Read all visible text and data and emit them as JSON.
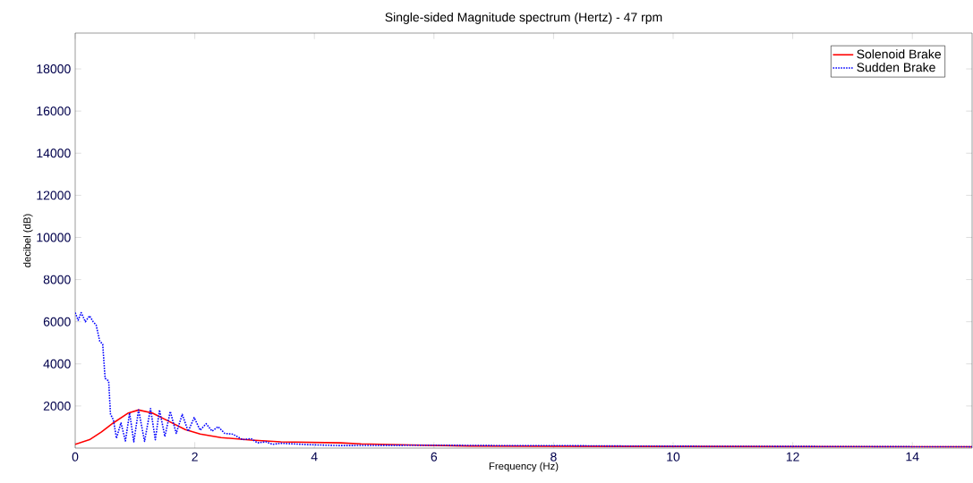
{
  "chart_data": {
    "type": "line",
    "title": "Single-sided Magnitude spectrum (Hertz) - 47 rpm",
    "xlabel": "Frequency (Hz)",
    "ylabel": "decibel (dB)",
    "xlim": [
      0,
      15
    ],
    "ylim": [
      0,
      19700
    ],
    "xticks": [
      0,
      2,
      4,
      6,
      8,
      10,
      12,
      14
    ],
    "yticks": [
      2000,
      4000,
      6000,
      8000,
      10000,
      12000,
      14000,
      16000,
      18000
    ],
    "legend": "top right",
    "series": [
      {
        "name": "Solenoid Brake",
        "color": "#ff0000",
        "line_style": "solid",
        "x": [
          0,
          0.24,
          0.44,
          0.64,
          0.89,
          1.06,
          1.29,
          1.54,
          1.84,
          2.09,
          2.44,
          2.94,
          3.44,
          4.44,
          4.78,
          5.59,
          6.59,
          8,
          10,
          12,
          15
        ],
        "values": [
          180,
          400,
          770,
          1200,
          1670,
          1810,
          1670,
          1310,
          880,
          670,
          500,
          380,
          300,
          250,
          200,
          150,
          100,
          90,
          80,
          70,
          60
        ]
      },
      {
        "name": "Sudden Brake",
        "color": "#0000ff",
        "line_style": "dotted",
        "x": [
          0,
          0.05,
          0.1,
          0.17,
          0.24,
          0.3,
          0.35,
          0.41,
          0.46,
          0.5,
          0.56,
          0.59,
          0.64,
          0.69,
          0.765,
          0.84,
          0.91,
          0.98,
          1.06,
          1.16,
          1.26,
          1.34,
          1.41,
          1.5,
          1.59,
          1.69,
          1.79,
          1.89,
          1.99,
          2.09,
          2.19,
          2.29,
          2.39,
          2.5,
          2.64,
          2.8,
          2.94,
          3.05,
          3.19,
          3.3,
          3.44,
          3.94,
          4.44,
          5,
          6,
          7,
          8,
          9,
          10,
          12,
          15
        ],
        "values": [
          6430,
          6070,
          6430,
          6000,
          6280,
          6000,
          5850,
          5080,
          4930,
          3320,
          3180,
          1620,
          1330,
          470,
          1200,
          340,
          1670,
          300,
          1810,
          320,
          1880,
          400,
          1810,
          550,
          1740,
          700,
          1600,
          800,
          1450,
          850,
          1160,
          800,
          1020,
          700,
          660,
          400,
          450,
          250,
          300,
          180,
          230,
          160,
          120,
          130,
          140,
          120,
          120,
          100,
          90,
          80,
          60
        ]
      }
    ]
  }
}
